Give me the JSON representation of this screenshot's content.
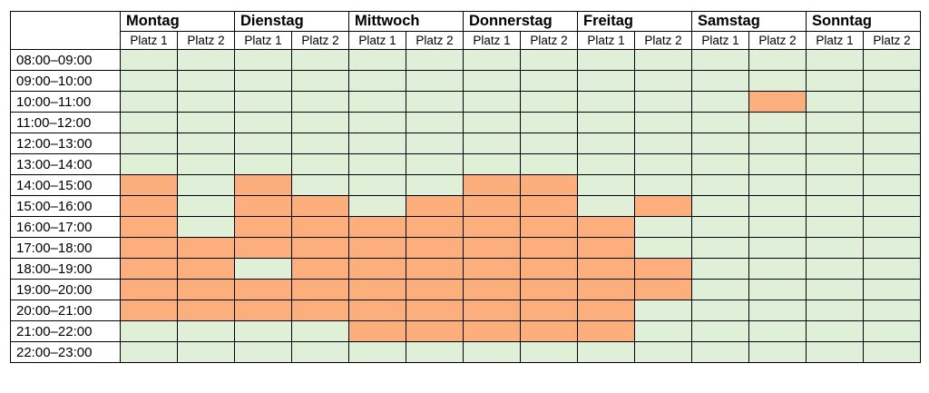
{
  "days": [
    {
      "name": "Montag",
      "courts": [
        "Platz 1",
        "Platz 2"
      ]
    },
    {
      "name": "Dienstag",
      "courts": [
        "Platz 1",
        "Platz 2"
      ]
    },
    {
      "name": "Mittwoch",
      "courts": [
        "Platz 1",
        "Platz 2"
      ]
    },
    {
      "name": "Donnerstag",
      "courts": [
        "Platz 1",
        "Platz 2"
      ]
    },
    {
      "name": "Freitag",
      "courts": [
        "Platz 1",
        "Platz 2"
      ]
    },
    {
      "name": "Samstag",
      "courts": [
        "Platz 1",
        "Platz 2"
      ]
    },
    {
      "name": "Sonntag",
      "courts": [
        "Platz 1",
        "Platz 2"
      ]
    }
  ],
  "time_slots": [
    "08:00–09:00",
    "09:00–10:00",
    "10:00–11:00",
    "11:00–12:00",
    "12:00–13:00",
    "13:00–14:00",
    "14:00–15:00",
    "15:00–16:00",
    "16:00–17:00",
    "17:00–18:00",
    "18:00–19:00",
    "19:00–20:00",
    "20:00–21:00",
    "21:00–22:00",
    "22:00–23:00"
  ],
  "colors": {
    "free": "#e0f0d8",
    "booked": "#fcae7c"
  },
  "booked": [
    [
      0,
      0,
      0,
      0,
      0,
      0,
      0,
      0,
      0,
      0,
      0,
      0,
      0,
      0
    ],
    [
      0,
      0,
      0,
      0,
      0,
      0,
      0,
      0,
      0,
      0,
      0,
      0,
      0,
      0
    ],
    [
      0,
      0,
      0,
      0,
      0,
      0,
      0,
      0,
      0,
      0,
      0,
      1,
      0,
      0
    ],
    [
      0,
      0,
      0,
      0,
      0,
      0,
      0,
      0,
      0,
      0,
      0,
      0,
      0,
      0
    ],
    [
      0,
      0,
      0,
      0,
      0,
      0,
      0,
      0,
      0,
      0,
      0,
      0,
      0,
      0
    ],
    [
      0,
      0,
      0,
      0,
      0,
      0,
      0,
      0,
      0,
      0,
      0,
      0,
      0,
      0
    ],
    [
      1,
      0,
      1,
      0,
      0,
      0,
      1,
      1,
      0,
      0,
      0,
      0,
      0,
      0
    ],
    [
      1,
      0,
      1,
      1,
      0,
      1,
      1,
      1,
      0,
      1,
      0,
      0,
      0,
      0
    ],
    [
      1,
      0,
      1,
      1,
      1,
      1,
      1,
      1,
      1,
      0,
      0,
      0,
      0,
      0
    ],
    [
      1,
      1,
      1,
      1,
      1,
      1,
      1,
      1,
      1,
      0,
      0,
      0,
      0,
      0
    ],
    [
      1,
      1,
      0,
      1,
      1,
      1,
      1,
      1,
      1,
      1,
      0,
      0,
      0,
      0
    ],
    [
      1,
      1,
      1,
      1,
      1,
      1,
      1,
      1,
      1,
      1,
      0,
      0,
      0,
      0
    ],
    [
      1,
      1,
      1,
      1,
      1,
      1,
      1,
      1,
      1,
      0,
      0,
      0,
      0,
      0
    ],
    [
      0,
      0,
      0,
      0,
      1,
      1,
      1,
      1,
      1,
      0,
      0,
      0,
      0,
      0
    ],
    [
      0,
      0,
      0,
      0,
      0,
      0,
      0,
      0,
      0,
      0,
      0,
      0,
      0,
      0
    ]
  ]
}
